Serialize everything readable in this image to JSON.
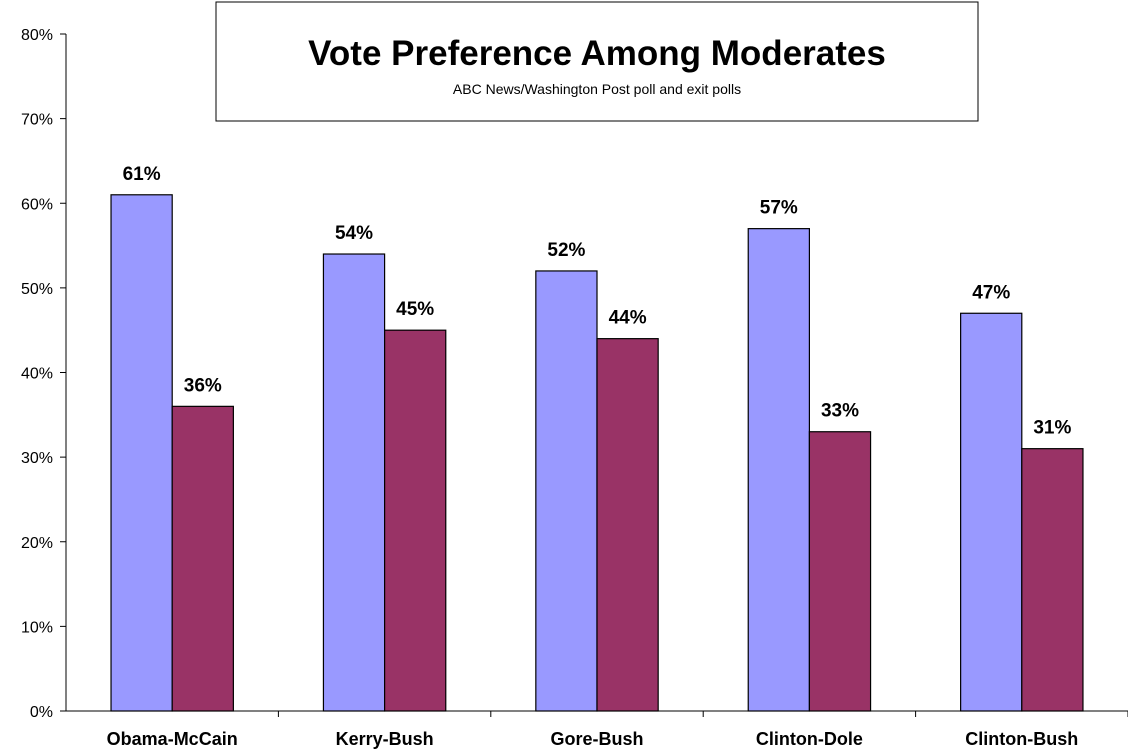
{
  "chart_data": {
    "type": "bar",
    "title": "Vote Preference Among Moderates",
    "subtitle": "ABC News/Washington Post poll and exit polls",
    "categories": [
      "Obama-McCain",
      "Kerry-Bush",
      "Gore-Bush",
      "Clinton-Dole",
      "Clinton-Bush"
    ],
    "series": [
      {
        "values": [
          61,
          54,
          52,
          57,
          47
        ],
        "color": "#9999ff"
      },
      {
        "values": [
          36,
          45,
          44,
          33,
          31
        ],
        "color": "#993366"
      }
    ],
    "ylim": [
      0,
      80
    ],
    "yticks": [
      "0%",
      "10%",
      "20%",
      "30%",
      "40%",
      "50%",
      "60%",
      "70%",
      "80%"
    ],
    "data_labels": [
      [
        "61%",
        "54%",
        "52%",
        "57%",
        "47%"
      ],
      [
        "36%",
        "45%",
        "44%",
        "33%",
        "31%"
      ]
    ],
    "xlabel": "",
    "ylabel": "",
    "grid": false,
    "legend": "none"
  }
}
